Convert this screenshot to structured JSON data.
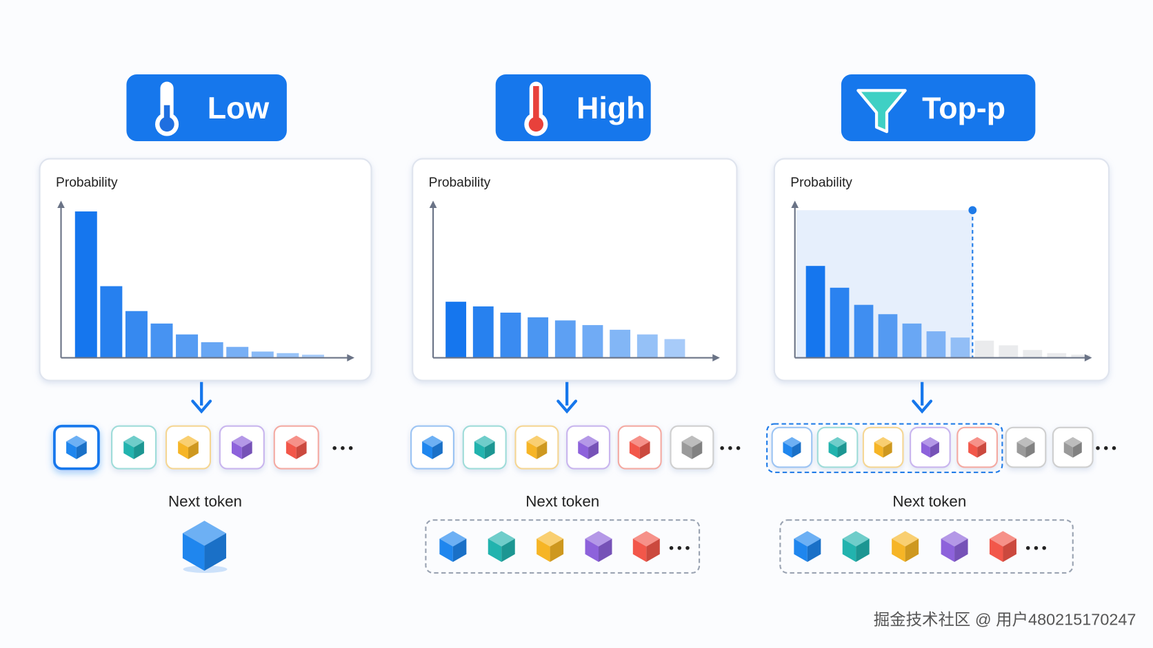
{
  "panels": [
    {
      "label": "Low",
      "chart": {
        "ylabel": "Probability",
        "ylim": [
          0,
          100
        ],
        "values": [
          94,
          46,
          30,
          22,
          15,
          10,
          7,
          4,
          3,
          2
        ]
      },
      "tokens": 5,
      "next_token": "Next token"
    },
    {
      "label": "High",
      "chart": {
        "ylabel": "Probability",
        "ylim": [
          0,
          100
        ],
        "values": [
          36,
          33,
          29,
          26,
          24,
          21,
          18,
          15,
          12
        ]
      },
      "tokens": 6,
      "next_token": "Next token"
    },
    {
      "label": "Top-p",
      "chart": {
        "ylabel": "Probability",
        "ylim": [
          0,
          100
        ],
        "values": [
          59,
          45,
          34,
          28,
          22,
          17,
          13,
          11,
          8,
          5,
          3,
          2
        ],
        "nucleus": 7
      },
      "tokens": 7,
      "next_token": "Next token"
    }
  ],
  "watermark": "掘金技术社区 @ 用户480215170247"
}
